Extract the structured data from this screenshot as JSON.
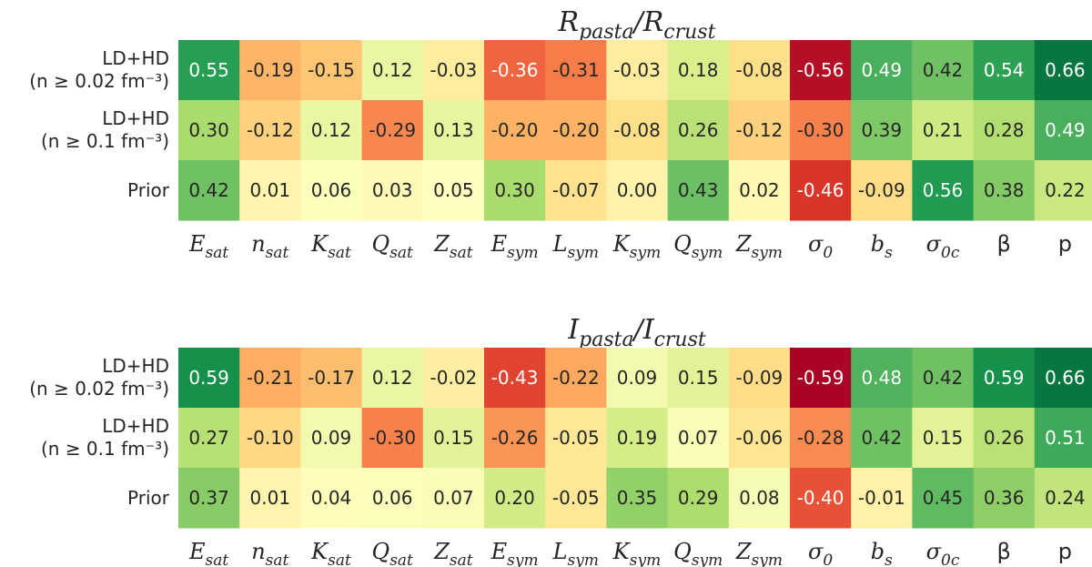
{
  "chart_data": [
    {
      "type": "heatmap",
      "title": {
        "main1": "R",
        "sub1": "pasta",
        "sep": "/",
        "main2": "R",
        "sub2": "crust"
      },
      "rows": [
        {
          "line1": "LD+HD",
          "line2": "(n ≥ 0.02 fm⁻³)"
        },
        {
          "line1": "LD+HD",
          "line2": "(n ≥ 0.1 fm⁻³)"
        },
        {
          "line1": "Prior",
          "line2": ""
        }
      ],
      "values": [
        [
          0.55,
          -0.19,
          -0.15,
          0.12,
          -0.03,
          -0.36,
          -0.31,
          -0.03,
          0.18,
          -0.08,
          -0.56,
          0.49,
          0.42,
          0.54,
          0.66
        ],
        [
          0.3,
          -0.12,
          0.12,
          -0.29,
          0.13,
          -0.2,
          -0.2,
          -0.08,
          0.26,
          -0.12,
          -0.3,
          0.39,
          0.21,
          0.28,
          0.49
        ],
        [
          0.42,
          0.01,
          0.06,
          0.03,
          0.05,
          0.3,
          -0.07,
          0.0,
          0.43,
          0.02,
          -0.46,
          -0.09,
          0.56,
          0.38,
          0.22
        ]
      ]
    },
    {
      "type": "heatmap",
      "title": {
        "main1": "I",
        "sub1": "pasta",
        "sep": "/",
        "main2": "I",
        "sub2": "crust"
      },
      "rows": [
        {
          "line1": "LD+HD",
          "line2": "(n ≥ 0.02 fm⁻³)"
        },
        {
          "line1": "LD+HD",
          "line2": "(n ≥ 0.1 fm⁻³)"
        },
        {
          "line1": "Prior",
          "line2": ""
        }
      ],
      "values": [
        [
          0.59,
          -0.21,
          -0.17,
          0.12,
          -0.02,
          -0.43,
          -0.22,
          0.09,
          0.15,
          -0.09,
          -0.59,
          0.48,
          0.42,
          0.59,
          0.66
        ],
        [
          0.27,
          -0.1,
          0.09,
          -0.3,
          0.15,
          -0.26,
          -0.05,
          0.19,
          0.07,
          -0.06,
          -0.28,
          0.42,
          0.15,
          0.26,
          0.51
        ],
        [
          0.37,
          0.01,
          0.04,
          0.06,
          0.07,
          0.2,
          -0.05,
          0.35,
          0.29,
          0.08,
          -0.4,
          -0.01,
          0.45,
          0.36,
          0.24
        ]
      ]
    }
  ],
  "columns": [
    {
      "base": "E",
      "sub": "sat",
      "italic": true
    },
    {
      "base": "n",
      "sub": "sat",
      "italic": true
    },
    {
      "base": "K",
      "sub": "sat",
      "italic": true
    },
    {
      "base": "Q",
      "sub": "sat",
      "italic": true
    },
    {
      "base": "Z",
      "sub": "sat",
      "italic": true
    },
    {
      "base": "E",
      "sub": "sym",
      "italic": true
    },
    {
      "base": "L",
      "sub": "sym",
      "italic": true
    },
    {
      "base": "K",
      "sub": "sym",
      "italic": true
    },
    {
      "base": "Q",
      "sub": "sym",
      "italic": true
    },
    {
      "base": "Z",
      "sub": "sym",
      "italic": true
    },
    {
      "base": "σ",
      "sub": "0",
      "italic": true
    },
    {
      "base": "b",
      "sub": "s",
      "italic": true
    },
    {
      "base": "σ",
      "sub": "0c",
      "italic": true
    },
    {
      "base": "β",
      "sub": "",
      "italic": false
    },
    {
      "base": "p",
      "sub": "",
      "italic": false
    }
  ],
  "colormap": {
    "name": "RdYlGn",
    "vmin": -0.6,
    "vmax": 0.7,
    "stops": [
      "#a50026",
      "#d73027",
      "#f46d43",
      "#fdae61",
      "#fee08b",
      "#ffffbf",
      "#d9ef8b",
      "#a6d96a",
      "#66bd63",
      "#1a9850",
      "#006837"
    ]
  }
}
